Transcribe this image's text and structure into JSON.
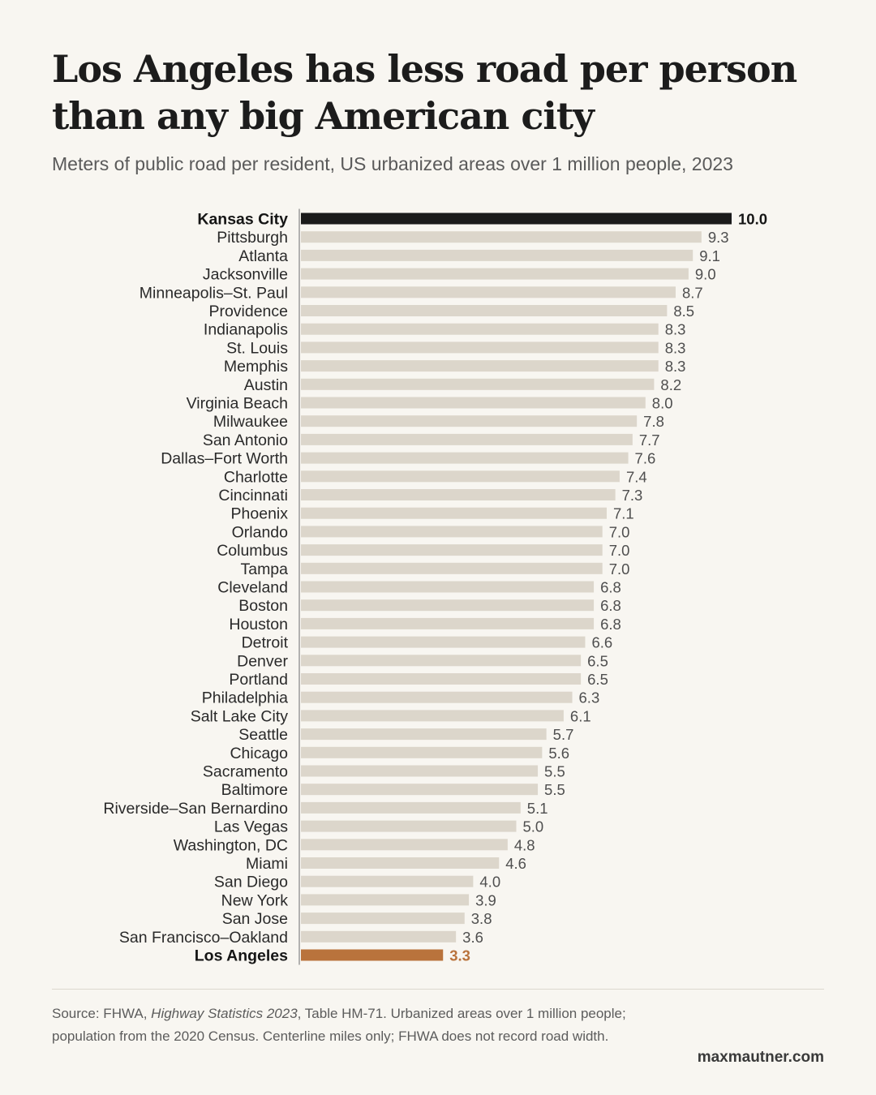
{
  "title": "Los Angeles has less road per person than any big American city",
  "subtitle": "Meters of public road per resident, US urbanized areas over 1 million people, 2023",
  "source": {
    "prefix": "Source: FHWA, ",
    "publication": "Highway Statistics 2023",
    "suffix": ", Table HM-71. Urbanized areas over 1 million people; population from the 2020 Census. Centerline miles only; FHWA does not record road width."
  },
  "credit": "maxmautner.com",
  "colors": {
    "background": "#f8f6f1",
    "bar_default": "#dcd6cb",
    "bar_top": "#1b1b1b",
    "bar_bottom": "#b9733c",
    "label_default": "#2a2a2a",
    "value_default": "#4f4f4f",
    "value_bottom": "#b9733c",
    "axis": "#9a9a9a"
  },
  "chart_data": {
    "type": "bar",
    "orientation": "horizontal",
    "xlim": [
      0,
      10
    ],
    "grid": false,
    "legend": "none",
    "highlight": {
      "top": "Kansas City",
      "bottom": "Los Angeles"
    },
    "categories": [
      "Kansas City",
      "Pittsburgh",
      "Atlanta",
      "Jacksonville",
      "Minneapolis–St. Paul",
      "Providence",
      "Indianapolis",
      "St. Louis",
      "Memphis",
      "Austin",
      "Virginia Beach",
      "Milwaukee",
      "San Antonio",
      "Dallas–Fort Worth",
      "Charlotte",
      "Cincinnati",
      "Phoenix",
      "Orlando",
      "Columbus",
      "Tampa",
      "Cleveland",
      "Boston",
      "Houston",
      "Detroit",
      "Denver",
      "Portland",
      "Philadelphia",
      "Salt Lake City",
      "Seattle",
      "Chicago",
      "Sacramento",
      "Baltimore",
      "Riverside–San Bernardino",
      "Las Vegas",
      "Washington, DC",
      "Miami",
      "San Diego",
      "New York",
      "San Jose",
      "San Francisco–Oakland",
      "Los Angeles"
    ],
    "values": [
      10.0,
      9.3,
      9.1,
      9.0,
      8.7,
      8.5,
      8.3,
      8.3,
      8.3,
      8.2,
      8.0,
      7.8,
      7.7,
      7.6,
      7.4,
      7.3,
      7.1,
      7.0,
      7.0,
      7.0,
      6.8,
      6.8,
      6.8,
      6.6,
      6.5,
      6.5,
      6.3,
      6.1,
      5.7,
      5.6,
      5.5,
      5.5,
      5.1,
      5.0,
      4.8,
      4.6,
      4.0,
      3.9,
      3.8,
      3.6,
      3.3
    ],
    "value_labels": [
      "10.0",
      "9.3",
      "9.1",
      "9.0",
      "8.7",
      "8.5",
      "8.3",
      "8.3",
      "8.3",
      "8.2",
      "8.0",
      "7.8",
      "7.7",
      "7.6",
      "7.4",
      "7.3",
      "7.1",
      "7.0",
      "7.0",
      "7.0",
      "6.8",
      "6.8",
      "6.8",
      "6.6",
      "6.5",
      "6.5",
      "6.3",
      "6.1",
      "5.7",
      "5.6",
      "5.5",
      "5.5",
      "5.1",
      "5.0",
      "4.8",
      "4.6",
      "4.0",
      "3.9",
      "3.8",
      "3.6",
      "3.3"
    ]
  }
}
